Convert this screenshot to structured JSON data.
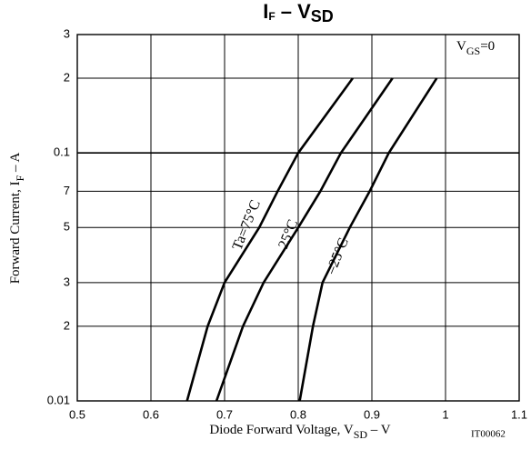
{
  "chart_data": {
    "type": "line",
    "title": [
      "I",
      "F",
      " – V",
      "SD"
    ],
    "x_label": [
      "Diode Forward Voltage, V",
      "SD",
      " – V"
    ],
    "y_label": [
      "Forward Current, I",
      "F",
      " – A"
    ],
    "annotation": [
      "V",
      "GS",
      "=0"
    ],
    "code": "IT00062",
    "log_y": true,
    "grid": true,
    "xlim": [
      0.5,
      1.1
    ],
    "xticks": [
      0.5,
      0.6,
      0.7,
      0.8,
      0.9,
      1.0,
      1.1
    ],
    "ylim": [
      0.01,
      0.3
    ],
    "yticks": [
      0.01,
      {
        "value": 0.02,
        "label": "2"
      },
      {
        "value": 0.03,
        "label": "3"
      },
      {
        "value": 0.05,
        "label": "5"
      },
      {
        "value": 0.07,
        "label": "7"
      },
      0.1,
      {
        "value": 0.2,
        "label": "2"
      },
      {
        "value": 0.3,
        "label": "3"
      }
    ],
    "series": [
      {
        "name": "Ta=75°C",
        "color": "#000000",
        "x": [
          0.649,
          0.677,
          0.7,
          0.747,
          0.772,
          0.8,
          0.874
        ],
        "values": [
          0.01,
          0.02,
          0.03,
          0.05,
          0.07,
          0.1,
          0.2
        ]
      },
      {
        "name": "25°C",
        "color": "#000000",
        "x": [
          0.689,
          0.725,
          0.753,
          0.8,
          0.83,
          0.858,
          0.928
        ],
        "values": [
          0.01,
          0.02,
          0.03,
          0.05,
          0.07,
          0.1,
          0.2
        ]
      },
      {
        "name": "–25°C",
        "color": "#000000",
        "x": [
          0.802,
          0.82,
          0.833,
          0.87,
          0.897,
          0.923,
          0.988
        ],
        "values": [
          0.01,
          0.02,
          0.03,
          0.05,
          0.07,
          0.1,
          0.2
        ]
      }
    ]
  }
}
